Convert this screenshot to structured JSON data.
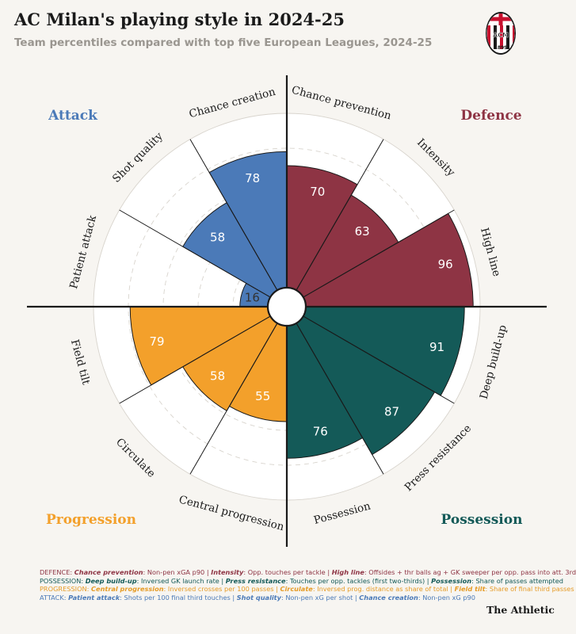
{
  "header": {
    "title": "AC Milan's playing style in 2024-25",
    "subtitle": "Team percentiles compared with top five European Leagues, 2024-25"
  },
  "logo": {
    "icon": "ac-milan-crest-icon",
    "crest_text": "ACM",
    "crest_year": "1899"
  },
  "colors": {
    "attack": "#4b7ab8",
    "defence": "#8e3444",
    "possession": "#145a58",
    "progression": "#f3a02b",
    "background": "#f7f5f1",
    "grid": "#d8d4cd"
  },
  "chart_data": {
    "type": "polar-bar",
    "title": "AC Milan's playing style in 2024-25",
    "subtitle": "Team percentiles compared with top five European Leagues, 2024-25",
    "rmax": 100,
    "grid_rings": [
      20,
      40,
      60,
      80,
      100
    ],
    "groups": [
      {
        "name": "Attack",
        "color": "#4b7ab8",
        "placement": "top-left"
      },
      {
        "name": "Defence",
        "color": "#8e3444",
        "placement": "top-right"
      },
      {
        "name": "Possession",
        "color": "#145a58",
        "placement": "bottom-right"
      },
      {
        "name": "Progression",
        "color": "#f3a02b",
        "placement": "bottom-left"
      }
    ],
    "metrics": [
      {
        "label": "Chance prevention",
        "group": "Defence",
        "value": 70
      },
      {
        "label": "Intensity",
        "group": "Defence",
        "value": 63
      },
      {
        "label": "High line",
        "group": "Defence",
        "value": 96
      },
      {
        "label": "Deep build-up",
        "group": "Possession",
        "value": 91
      },
      {
        "label": "Press resistance",
        "group": "Possession",
        "value": 87
      },
      {
        "label": "Possession",
        "group": "Possession",
        "value": 76
      },
      {
        "label": "Central progression",
        "group": "Progression",
        "value": 55
      },
      {
        "label": "Circulate",
        "group": "Progression",
        "value": 58
      },
      {
        "label": "Field tilt",
        "group": "Progression",
        "value": 79
      },
      {
        "label": "Patient attack",
        "group": "Attack",
        "value": 16
      },
      {
        "label": "Shot quality",
        "group": "Attack",
        "value": 58
      },
      {
        "label": "Chance creation",
        "group": "Attack",
        "value": 78
      }
    ]
  },
  "footnotes": {
    "defence": {
      "prefix": "DEFENCE: ",
      "items": [
        {
          "key": "Chance prevention",
          "text": "Non-pen xGA p90"
        },
        {
          "key": "Intensity",
          "text": "Opp. touches per tackle"
        },
        {
          "key": "High line",
          "text": "Offsides + thr balls ag + GK sweeper per opp. pass into att. 3rd"
        }
      ]
    },
    "possession": {
      "prefix": "POSSESSION: ",
      "items": [
        {
          "key": "Deep build-up",
          "text": "Inversed GK launch rate"
        },
        {
          "key": "Press resistance",
          "text": "Touches per opp. tackles (first two-thirds)"
        },
        {
          "key": "Possession",
          "text": "Share of passes attempted"
        }
      ]
    },
    "progression": {
      "prefix": "PROGRESSION: ",
      "items": [
        {
          "key": "Central progression",
          "text": "Inversed crosses per 100 passes"
        },
        {
          "key": "Circulate",
          "text": "Inversed prog. distance as share of total"
        },
        {
          "key": "Field tilt",
          "text": "Share of final third passes"
        }
      ]
    },
    "attack": {
      "prefix": "ATTACK: ",
      "items": [
        {
          "key": "Patient attack",
          "text": "Shots per 100 final third touches"
        },
        {
          "key": "Shot quality",
          "text": "Non-pen xG per shot"
        },
        {
          "key": "Chance creation",
          "text": "Non-pen xG p90"
        }
      ]
    }
  },
  "footer": {
    "brand": "The Athletic"
  }
}
